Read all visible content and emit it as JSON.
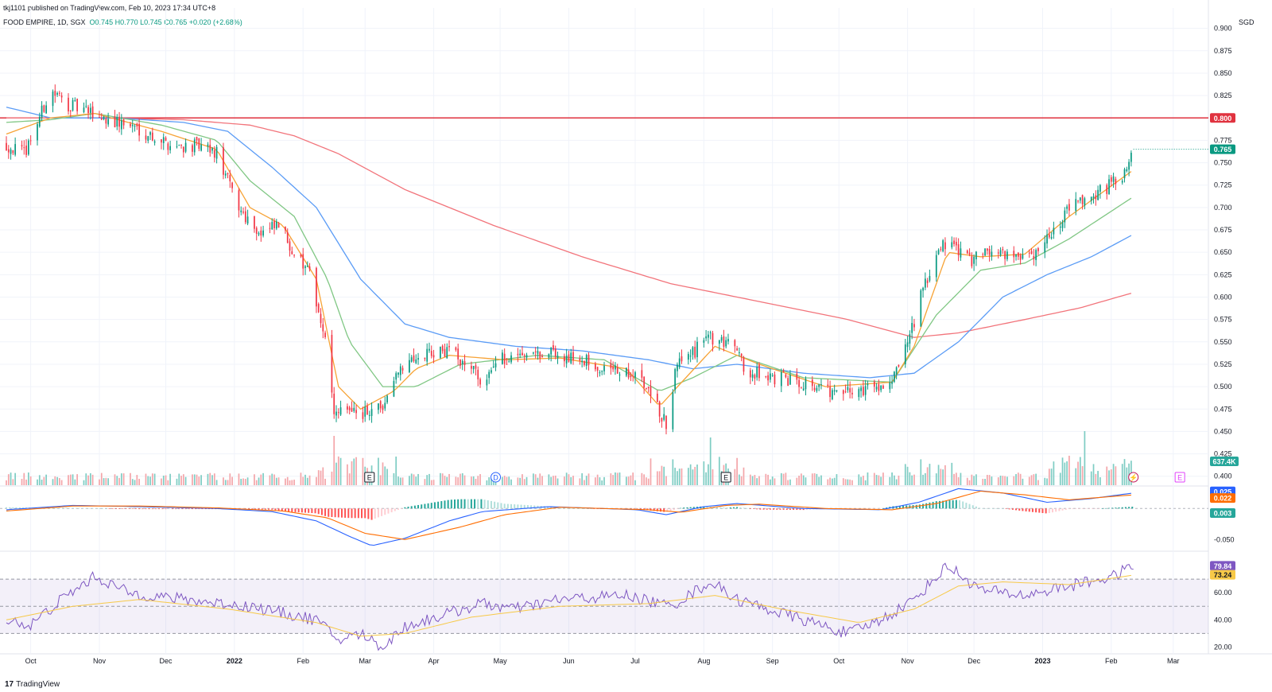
{
  "publisher": "tkj1101 published on TradingView.com, Feb 10, 2023 17:34 UTC+8",
  "symbol_line": {
    "symbol": "FOOD EMPIRE, 1D, SGX",
    "open": "O0.745",
    "high": "H0.770",
    "low": "L0.745",
    "close": "C0.765",
    "change": "+0.020 (+2.68%)"
  },
  "currency": "SGD",
  "brand": {
    "logo": "17",
    "name": "TradingView"
  },
  "colors": {
    "up": "#089981",
    "down": "#f23645",
    "vol_up": "#7fcdc4",
    "vol_down": "#f4a6aa",
    "ema_fast": "#f7a336",
    "ema_mid": "#80c784",
    "ema_slow": "#5b9cf6",
    "ema_long": "#f2747b",
    "macd": "#2962ff",
    "signal": "#ff6d00",
    "rsi": "#7e57c2",
    "rsi_ma": "#f7c948",
    "resistance": "#e0323f"
  },
  "chart_data": [
    {
      "type": "candlestick",
      "name": "price",
      "y_ticks": [
        "0.900",
        "0.875",
        "0.850",
        "0.825",
        "0.800",
        "0.775",
        "0.750",
        "0.725",
        "0.700",
        "0.675",
        "0.650",
        "0.625",
        "0.600",
        "0.575",
        "0.550",
        "0.525",
        "0.500",
        "0.475",
        "0.450",
        "0.425",
        "0.400"
      ],
      "ylim": [
        0.39,
        0.905
      ],
      "x_labels": [
        "Oct",
        "Nov",
        "Dec",
        "2022",
        "Feb",
        "Mar",
        "Apr",
        "May",
        "Jun",
        "Jul",
        "Aug",
        "Sep",
        "Oct",
        "Nov",
        "Dec",
        "2023",
        "Feb",
        "Mar"
      ],
      "x_label_months": [
        0,
        1,
        2,
        3,
        4,
        5,
        6,
        7,
        8,
        9,
        10,
        11,
        12,
        13,
        14,
        15,
        16,
        17
      ],
      "start": "2021-09-20",
      "resistance": 0.8,
      "resistance_label": "0.800",
      "last_price_label": "0.765",
      "volume_label": "637.4K",
      "close_anchors": [
        [
          0,
          0.77
        ],
        [
          8,
          0.76
        ],
        [
          14,
          0.795
        ],
        [
          20,
          0.83
        ],
        [
          28,
          0.815
        ],
        [
          38,
          0.805
        ],
        [
          50,
          0.795
        ],
        [
          58,
          0.79
        ],
        [
          66,
          0.78
        ],
        [
          74,
          0.77
        ],
        [
          86,
          0.768
        ],
        [
          95,
          0.76
        ],
        [
          105,
          0.7
        ],
        [
          115,
          0.67
        ],
        [
          123,
          0.68
        ],
        [
          130,
          0.65
        ],
        [
          138,
          0.62
        ],
        [
          144,
          0.55
        ],
        [
          148,
          0.47
        ],
        [
          153,
          0.48
        ],
        [
          160,
          0.47
        ],
        [
          170,
          0.475
        ],
        [
          176,
          0.52
        ],
        [
          185,
          0.535
        ],
        [
          198,
          0.54
        ],
        [
          210,
          0.525
        ],
        [
          216,
          0.5
        ],
        [
          222,
          0.53
        ],
        [
          235,
          0.54
        ],
        [
          255,
          0.535
        ],
        [
          270,
          0.52
        ],
        [
          285,
          0.51
        ],
        [
          293,
          0.48
        ],
        [
          298,
          0.46
        ],
        [
          303,
          0.525
        ],
        [
          311,
          0.54
        ],
        [
          318,
          0.555
        ],
        [
          327,
          0.545
        ],
        [
          334,
          0.52
        ],
        [
          345,
          0.51
        ],
        [
          362,
          0.505
        ],
        [
          376,
          0.49
        ],
        [
          390,
          0.5
        ],
        [
          400,
          0.505
        ],
        [
          406,
          0.54
        ],
        [
          413,
          0.6
        ],
        [
          420,
          0.65
        ],
        [
          426,
          0.665
        ],
        [
          435,
          0.64
        ],
        [
          447,
          0.655
        ],
        [
          460,
          0.64
        ],
        [
          468,
          0.66
        ],
        [
          480,
          0.7
        ],
        [
          495,
          0.72
        ],
        [
          505,
          0.735
        ],
        [
          509,
          0.765
        ]
      ],
      "ema_fast_pts": [
        [
          0,
          0.782
        ],
        [
          20,
          0.8
        ],
        [
          40,
          0.805
        ],
        [
          70,
          0.785
        ],
        [
          95,
          0.765
        ],
        [
          110,
          0.7
        ],
        [
          125,
          0.68
        ],
        [
          140,
          0.62
        ],
        [
          150,
          0.5
        ],
        [
          160,
          0.475
        ],
        [
          175,
          0.495
        ],
        [
          185,
          0.52
        ],
        [
          200,
          0.535
        ],
        [
          225,
          0.53
        ],
        [
          250,
          0.532
        ],
        [
          280,
          0.52
        ],
        [
          295,
          0.478
        ],
        [
          305,
          0.505
        ],
        [
          320,
          0.545
        ],
        [
          340,
          0.525
        ],
        [
          370,
          0.5
        ],
        [
          400,
          0.505
        ],
        [
          410,
          0.545
        ],
        [
          425,
          0.65
        ],
        [
          440,
          0.645
        ],
        [
          460,
          0.648
        ],
        [
          480,
          0.69
        ],
        [
          509,
          0.742
        ]
      ],
      "ema_mid_pts": [
        [
          0,
          0.795
        ],
        [
          20,
          0.798
        ],
        [
          40,
          0.805
        ],
        [
          70,
          0.792
        ],
        [
          95,
          0.775
        ],
        [
          110,
          0.73
        ],
        [
          130,
          0.69
        ],
        [
          145,
          0.62
        ],
        [
          155,
          0.55
        ],
        [
          170,
          0.5
        ],
        [
          185,
          0.5
        ],
        [
          205,
          0.525
        ],
        [
          240,
          0.535
        ],
        [
          270,
          0.53
        ],
        [
          295,
          0.495
        ],
        [
          310,
          0.51
        ],
        [
          330,
          0.535
        ],
        [
          360,
          0.51
        ],
        [
          400,
          0.505
        ],
        [
          420,
          0.58
        ],
        [
          440,
          0.63
        ],
        [
          460,
          0.638
        ],
        [
          480,
          0.665
        ],
        [
          509,
          0.712
        ]
      ],
      "ema_slow_pts": [
        [
          0,
          0.812
        ],
        [
          20,
          0.8
        ],
        [
          50,
          0.8
        ],
        [
          80,
          0.795
        ],
        [
          100,
          0.785
        ],
        [
          120,
          0.745
        ],
        [
          140,
          0.7
        ],
        [
          160,
          0.62
        ],
        [
          180,
          0.57
        ],
        [
          200,
          0.555
        ],
        [
          230,
          0.545
        ],
        [
          260,
          0.54
        ],
        [
          290,
          0.53
        ],
        [
          310,
          0.52
        ],
        [
          330,
          0.525
        ],
        [
          360,
          0.515
        ],
        [
          390,
          0.51
        ],
        [
          410,
          0.515
        ],
        [
          430,
          0.55
        ],
        [
          450,
          0.6
        ],
        [
          470,
          0.625
        ],
        [
          490,
          0.645
        ],
        [
          509,
          0.67
        ]
      ],
      "ema_long_pts": [
        [
          0,
          0.8
        ],
        [
          40,
          0.8
        ],
        [
          80,
          0.798
        ],
        [
          110,
          0.792
        ],
        [
          130,
          0.78
        ],
        [
          150,
          0.76
        ],
        [
          180,
          0.72
        ],
        [
          220,
          0.68
        ],
        [
          260,
          0.645
        ],
        [
          300,
          0.615
        ],
        [
          340,
          0.595
        ],
        [
          380,
          0.575
        ],
        [
          410,
          0.555
        ],
        [
          430,
          0.56
        ],
        [
          460,
          0.575
        ],
        [
          485,
          0.588
        ],
        [
          509,
          0.605
        ]
      ]
    },
    {
      "type": "histogram+line",
      "name": "macd",
      "y_ticks": [
        "-0.050"
      ],
      "ylim": [
        -0.065,
        0.035
      ],
      "labels": [
        "0.025",
        "0.022",
        "0.003"
      ]
    },
    {
      "type": "line",
      "name": "rsi",
      "y_ticks": [
        "60.00",
        "40.00",
        "20.00"
      ],
      "ylim": [
        15,
        90
      ],
      "band": [
        30,
        70
      ],
      "labels": [
        "79.84",
        "73.24"
      ]
    }
  ],
  "event_markers": [
    {
      "icon": "earnings-icon",
      "label": "E",
      "day": 164
    },
    {
      "icon": "dividend-icon",
      "label": "D",
      "day": 221
    },
    {
      "icon": "earnings-icon",
      "label": "E",
      "day": 325
    },
    {
      "icon": "flash-icon",
      "label": "⚡",
      "day": 509
    },
    {
      "icon": "earnings-icon",
      "label": "E",
      "day": 530
    }
  ]
}
